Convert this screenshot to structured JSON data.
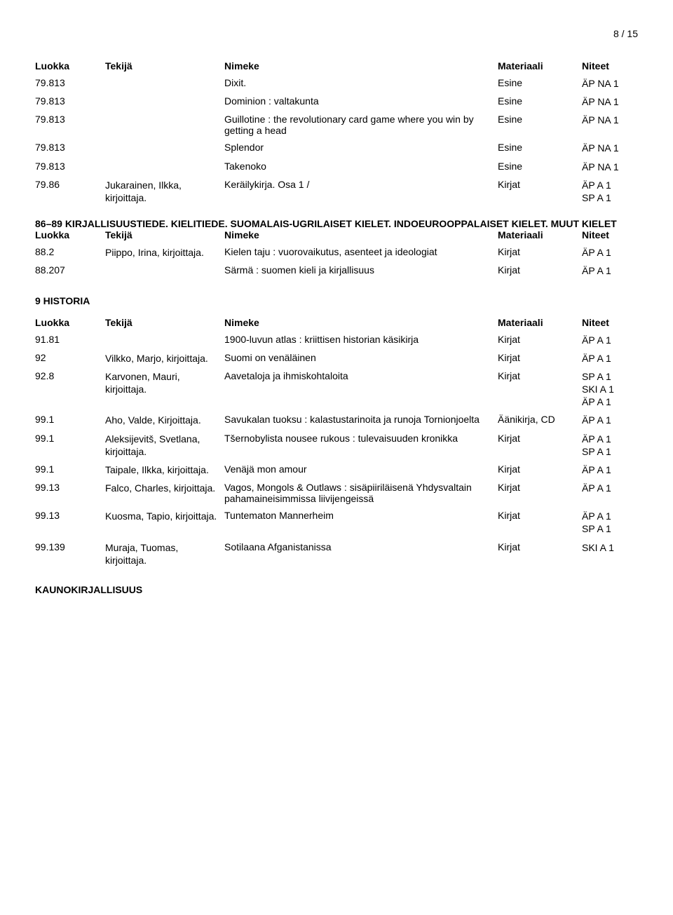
{
  "page_num": "8 / 15",
  "headers": {
    "luokka": "Luokka",
    "tekija": "Tekijä",
    "nimeke": "Nimeke",
    "materiaali": "Materiaali",
    "niteet": "Niteet"
  },
  "sec1_rows": [
    {
      "luokka": "79.813",
      "tekija": "",
      "nimeke": "Dixit.",
      "mat": "Esine",
      "nit": "ÄP NA 1"
    },
    {
      "luokka": "79.813",
      "tekija": "",
      "nimeke": "Dominion : valtakunta",
      "mat": "Esine",
      "nit": "ÄP NA 1"
    },
    {
      "luokka": "79.813",
      "tekija": "",
      "nimeke": "Guillotine : the revolutionary card game where you win by getting a head",
      "mat": "Esine",
      "nit": "ÄP NA 1"
    },
    {
      "luokka": "79.813",
      "tekija": "",
      "nimeke": "Splendor",
      "mat": "Esine",
      "nit": "ÄP NA 1"
    },
    {
      "luokka": "79.813",
      "tekija": "",
      "nimeke": "Takenoko",
      "mat": "Esine",
      "nit": "ÄP NA 1"
    },
    {
      "luokka": "79.86",
      "tekija": "Jukarainen, Ilkka, kirjoittaja.",
      "nimeke": "Keräilykirja. Osa 1 /",
      "mat": "Kirjat",
      "nit": "ÄP A 1\nSP A 1"
    }
  ],
  "sec2_title": "86–89 KIRJALLISUUSTIEDE. KIELITIEDE. SUOMALAIS-UGRILAISET KIELET. INDOEUROOPPALAISET KIELET. MUUT KIELET",
  "sec2_rows": [
    {
      "luokka": "88.2",
      "tekija": "Piippo, Irina, kirjoittaja.",
      "nimeke": "Kielen taju : vuorovaikutus, asenteet ja ideologiat",
      "mat": "Kirjat",
      "nit": "ÄP A 1"
    },
    {
      "luokka": "88.207",
      "tekija": "",
      "nimeke": "Särmä : suomen kieli ja kirjallisuus",
      "mat": "Kirjat",
      "nit": "ÄP A 1"
    }
  ],
  "sec3_title": "9 HISTORIA",
  "sec3_rows": [
    {
      "luokka": "91.81",
      "tekija": "",
      "nimeke": "1900-luvun atlas : kriittisen historian käsikirja",
      "mat": "Kirjat",
      "nit": "ÄP A 1"
    },
    {
      "luokka": "92",
      "tekija": "Vilkko, Marjo, kirjoittaja.",
      "nimeke": "Suomi on venäläinen",
      "mat": "Kirjat",
      "nit": "ÄP A 1"
    },
    {
      "luokka": "92.8",
      "tekija": "Karvonen, Mauri, kirjoittaja.",
      "nimeke": "Aavetaloja ja ihmiskohtaloita",
      "mat": "Kirjat",
      "nit": "SP A 1\nSKI A 1\nÄP A 1"
    },
    {
      "luokka": "99.1",
      "tekija": "Aho, Valde, Kirjoittaja.",
      "nimeke": "Savukalan tuoksu : kalastustarinoita ja runoja Tornionjoelta",
      "mat": "Äänikirja, CD",
      "nit": "ÄP A 1"
    },
    {
      "luokka": "99.1",
      "tekija": "Aleksijevitš, Svetlana, kirjoittaja.",
      "nimeke": "Tšernobylista nousee rukous : tulevaisuuden kronikka",
      "mat": "Kirjat",
      "nit": "ÄP A 1\nSP A 1"
    },
    {
      "luokka": "99.1",
      "tekija": "Taipale, Ilkka, kirjoittaja.",
      "nimeke": "Venäjä mon amour",
      "mat": "Kirjat",
      "nit": "ÄP A 1"
    },
    {
      "luokka": "99.13",
      "tekija": "Falco, Charles, kirjoittaja.",
      "nimeke": "Vagos, Mongols & Outlaws : sisäpiiriläisenä Yhdysvaltain pahamaineisimmissa liivijengeissä",
      "mat": "Kirjat",
      "nit": "ÄP A 1"
    },
    {
      "luokka": "99.13",
      "tekija": "Kuosma, Tapio, kirjoittaja.",
      "nimeke": "Tuntematon Mannerheim",
      "mat": "Kirjat",
      "nit": "ÄP A 1\nSP A 1"
    },
    {
      "luokka": "99.139",
      "tekija": "Muraja, Tuomas, kirjoittaja.",
      "nimeke": "Sotilaana Afganistanissa",
      "mat": "Kirjat",
      "nit": "SKI A 1"
    }
  ],
  "footer_title": "KAUNOKIRJALLISUUS"
}
